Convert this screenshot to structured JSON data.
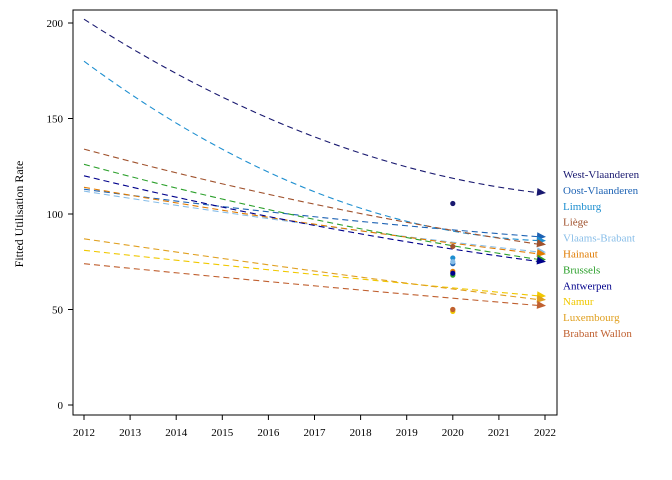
{
  "chart_data": {
    "type": "line",
    "title": "",
    "xlabel": "",
    "ylabel": "Fitted Utilisation Rate",
    "xlim": [
      2012,
      2022
    ],
    "ylim": [
      0,
      210
    ],
    "x_ticks": [
      "2012",
      "2013",
      "2014",
      "2015",
      "2016",
      "2017",
      "2018",
      "2019",
      "2020",
      "2021",
      "2022"
    ],
    "y_ticks": [
      "0",
      "50",
      "100",
      "150",
      "200"
    ],
    "grid": false,
    "legend_position": "right",
    "series": [
      {
        "name": "West-Vlaanderen",
        "color": "#191970",
        "start": [
          2012,
          202
        ],
        "end": [
          2022,
          111
        ],
        "curve": 0.35,
        "points_2020": [
          105.5
        ]
      },
      {
        "name": "Oost-Vlaanderen",
        "color": "#1e63b4",
        "start": [
          2012,
          113
        ],
        "end": [
          2022,
          88
        ],
        "curve": 0.15,
        "points_2020": [
          74
        ]
      },
      {
        "name": "Limburg",
        "color": "#1e8fd0",
        "start": [
          2012,
          180
        ],
        "end": [
          2022,
          86
        ],
        "curve": 0.45,
        "points_2020": [
          77
        ]
      },
      {
        "name": "Liège",
        "color": "#a0522d",
        "start": [
          2012,
          134
        ],
        "end": [
          2022,
          84
        ],
        "curve": 0.15,
        "points_2020": [
          83
        ]
      },
      {
        "name": "Vlaams-Brabant",
        "color": "#87bde8",
        "start": [
          2012,
          112
        ],
        "end": [
          2022,
          80
        ],
        "curve": 0.1,
        "points_2020": [
          75
        ]
      },
      {
        "name": "Hainaut",
        "color": "#e07b00",
        "start": [
          2012,
          114
        ],
        "end": [
          2022,
          79
        ],
        "curve": 0.1,
        "points_2020": [
          70
        ]
      },
      {
        "name": "Brussels",
        "color": "#2ca02c",
        "start": [
          2012,
          126
        ],
        "end": [
          2022,
          76
        ],
        "curve": 0.15,
        "points_2020": [
          68
        ]
      },
      {
        "name": "Antwerpen",
        "color": "#00008b",
        "start": [
          2012,
          120
        ],
        "end": [
          2022,
          75
        ],
        "curve": 0.15,
        "points_2020": [
          69
        ]
      },
      {
        "name": "Namur",
        "color": "#f0c800",
        "start": [
          2012,
          81
        ],
        "end": [
          2022,
          57
        ],
        "curve": 0.05,
        "points_2020": [
          49
        ]
      },
      {
        "name": "Luxembourg",
        "color": "#e0a020",
        "start": [
          2012,
          87
        ],
        "end": [
          2022,
          55
        ],
        "curve": 0.05,
        "points_2020": [
          50
        ]
      },
      {
        "name": "Brabant Wallon",
        "color": "#c06030",
        "start": [
          2012,
          74
        ],
        "end": [
          2022,
          52
        ],
        "curve": 0.05,
        "points_2020": [
          50
        ]
      }
    ]
  }
}
